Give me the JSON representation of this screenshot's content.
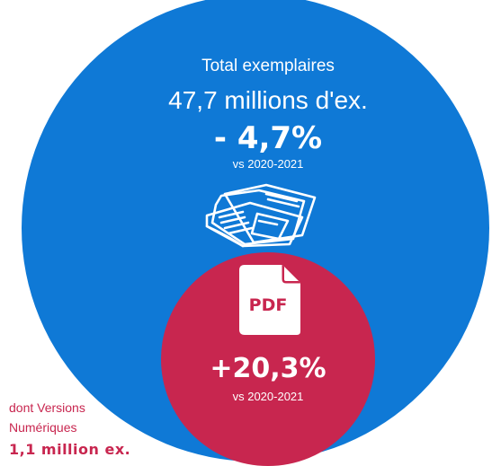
{
  "colors": {
    "total": "#0f79d6",
    "digital": "#c8264f",
    "text_on_circle": "#ffffff"
  },
  "total": {
    "label": "Total exemplaires",
    "value": "47,7 millions d'ex.",
    "change": "- 4,7%",
    "period": "vs 2020-2021",
    "icon": "newspaper-icon"
  },
  "digital": {
    "change": "+20,3%",
    "period": "vs 2020-2021",
    "icon": "pdf-file-icon",
    "icon_text": "PDF",
    "side_line1": "dont Versions",
    "side_line2": "Numériques",
    "side_value": "1,1 million ex."
  }
}
